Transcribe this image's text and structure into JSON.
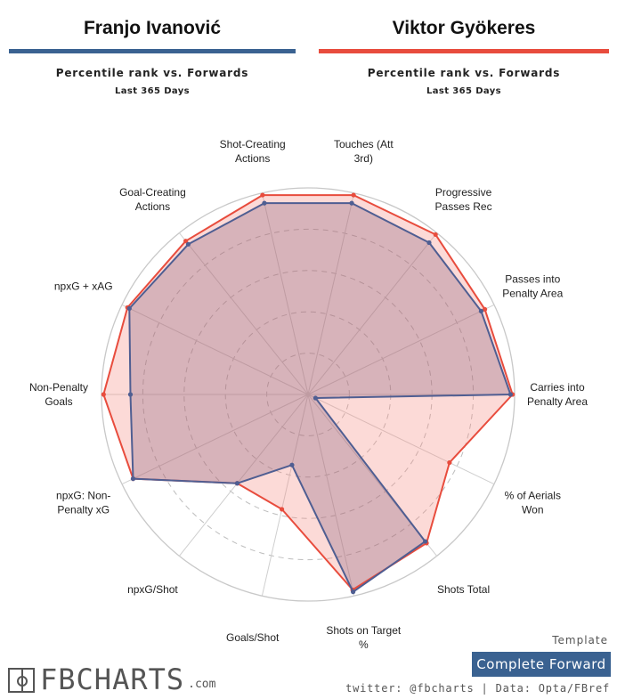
{
  "players": [
    {
      "name": "Franjo Ivanović",
      "subtitle": "Percentile rank vs. Forwards",
      "period": "Last 365 Days",
      "color": "#3a6291"
    },
    {
      "name": "Viktor Gyökeres",
      "subtitle": "Percentile rank vs. Forwards",
      "period": "Last 365 Days",
      "color": "#e84c3d"
    }
  ],
  "template_label": "Template",
  "template_name": "Complete Forward",
  "credit": "twitter: @fbcharts | Data: Opta/FBref",
  "logo": {
    "text": "FBCHARTS",
    "suffix": ".com"
  },
  "chart_data": {
    "type": "radar",
    "categories": [
      "Touches (Att 3rd)",
      "Progressive Passes Rec",
      "Passes into Penalty Area",
      "Carries into Penalty Area",
      "% of Aerials Won",
      "Shots Total",
      "Shots on Target %",
      "Goals/Shot",
      "npxG/Shot",
      "npxG: Non-Penalty xG",
      "Non-Penalty Goals",
      "npxG + xAG",
      "Goal-Creating Actions",
      "Shot-Creating Actions"
    ],
    "label_lines": [
      [
        "Touches (Att",
        "3rd)"
      ],
      [
        "Progressive",
        "Passes Rec"
      ],
      [
        "Passes into",
        "Penalty Area"
      ],
      [
        "Carries into",
        "Penalty Area"
      ],
      [
        "% of Aerials",
        "Won"
      ],
      [
        "Shots Total"
      ],
      [
        "Shots on Target",
        "%"
      ],
      [
        "Goals/Shot"
      ],
      [
        "npxG/Shot"
      ],
      [
        "npxG: Non-",
        "Penalty xG"
      ],
      [
        "Non-Penalty",
        "Goals"
      ],
      [
        "npxG + xAG"
      ],
      [
        "Goal-Creating",
        "Actions"
      ],
      [
        "Shot-Creating",
        "Actions"
      ]
    ],
    "range": [
      0,
      100
    ],
    "gridlines": [
      20,
      40,
      60,
      80,
      100
    ],
    "series": [
      {
        "name": "Viktor Gyökeres",
        "color": "#e84c3d",
        "fill": "rgba(245,140,130,0.32)",
        "values": [
          99,
          99,
          95,
          99,
          76,
          92,
          97,
          57,
          55,
          94,
          99,
          97,
          95,
          99
        ]
      },
      {
        "name": "Franjo Ivanović",
        "color": "#4f5e92",
        "fill": "rgba(120,80,110,0.28)",
        "values": [
          95,
          94,
          93,
          98,
          4,
          91,
          98,
          35,
          55,
          94,
          86,
          96,
          93,
          95
        ]
      }
    ]
  }
}
